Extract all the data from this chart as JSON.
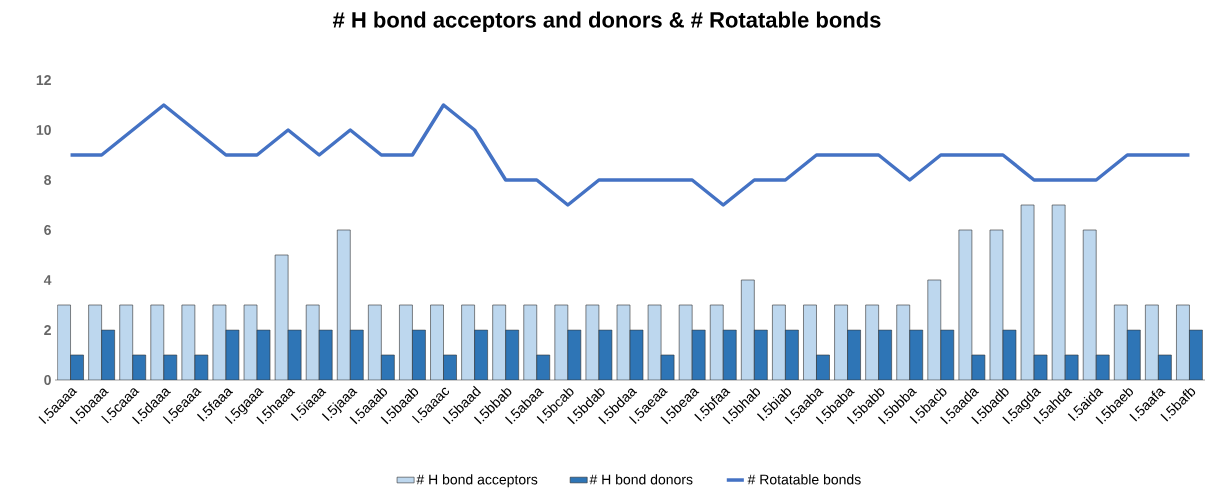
{
  "chart_data": {
    "type": "bar",
    "title": "# H bond acceptors and donors & # Rotatable bonds",
    "categories": [
      "I.5aaaa",
      "I.5baaa",
      "I.5caaa",
      "I.5daaa",
      "I.5eaaa",
      "I.5faaa",
      "I.5gaaa",
      "I.5haaa",
      "I.5iaaa",
      "I.5jaaa",
      "I.5aaab",
      "I.5baab",
      "I.5aaac",
      "I.5baad",
      "I.5bbab",
      "I.5abaa",
      "I.5bcab",
      "I.5bdab",
      "I.5bdaa",
      "I.5aeaa",
      "I.5beaa",
      "I.5bfaa",
      "I.5bhab",
      "I.5biab",
      "I.5aaba",
      "I.5baba",
      "I.5babb",
      "I.5bbba",
      "I.5bacb",
      "I.5aada",
      "I.5badb",
      "I.5agda",
      "I.5ahda",
      "I.5aida",
      "I.5baeb",
      "I.5aafa",
      "I.5bafb"
    ],
    "series": [
      {
        "name": "# H bond acceptors",
        "color": "#bdd7ee",
        "values": [
          3,
          3,
          3,
          3,
          3,
          3,
          3,
          5,
          3,
          6,
          3,
          3,
          3,
          3,
          3,
          3,
          3,
          3,
          3,
          3,
          3,
          3,
          4,
          3,
          3,
          3,
          3,
          3,
          4,
          6,
          6,
          7,
          7,
          6,
          3,
          3,
          3
        ]
      },
      {
        "name": "# H bond donors",
        "color": "#2e75b6",
        "values": [
          1,
          2,
          1,
          1,
          1,
          2,
          2,
          2,
          2,
          2,
          1,
          2,
          1,
          2,
          2,
          1,
          2,
          2,
          2,
          1,
          2,
          2,
          2,
          2,
          1,
          2,
          2,
          2,
          2,
          1,
          2,
          1,
          1,
          1,
          2,
          1,
          2
        ]
      },
      {
        "name": "# Rotatable bonds",
        "type": "line",
        "color": "#4472c4",
        "values": [
          9,
          9,
          10,
          11,
          10,
          9,
          9,
          10,
          9,
          10,
          9,
          9,
          11,
          10,
          8,
          8,
          7,
          8,
          8,
          8,
          8,
          7,
          8,
          8,
          9,
          9,
          9,
          8,
          9,
          9,
          9,
          8,
          8,
          8,
          9,
          9,
          9
        ]
      }
    ],
    "ylim": [
      0,
      12
    ],
    "yticks": [
      0,
      2,
      4,
      6,
      8,
      10,
      12
    ],
    "legend": "bottom"
  }
}
